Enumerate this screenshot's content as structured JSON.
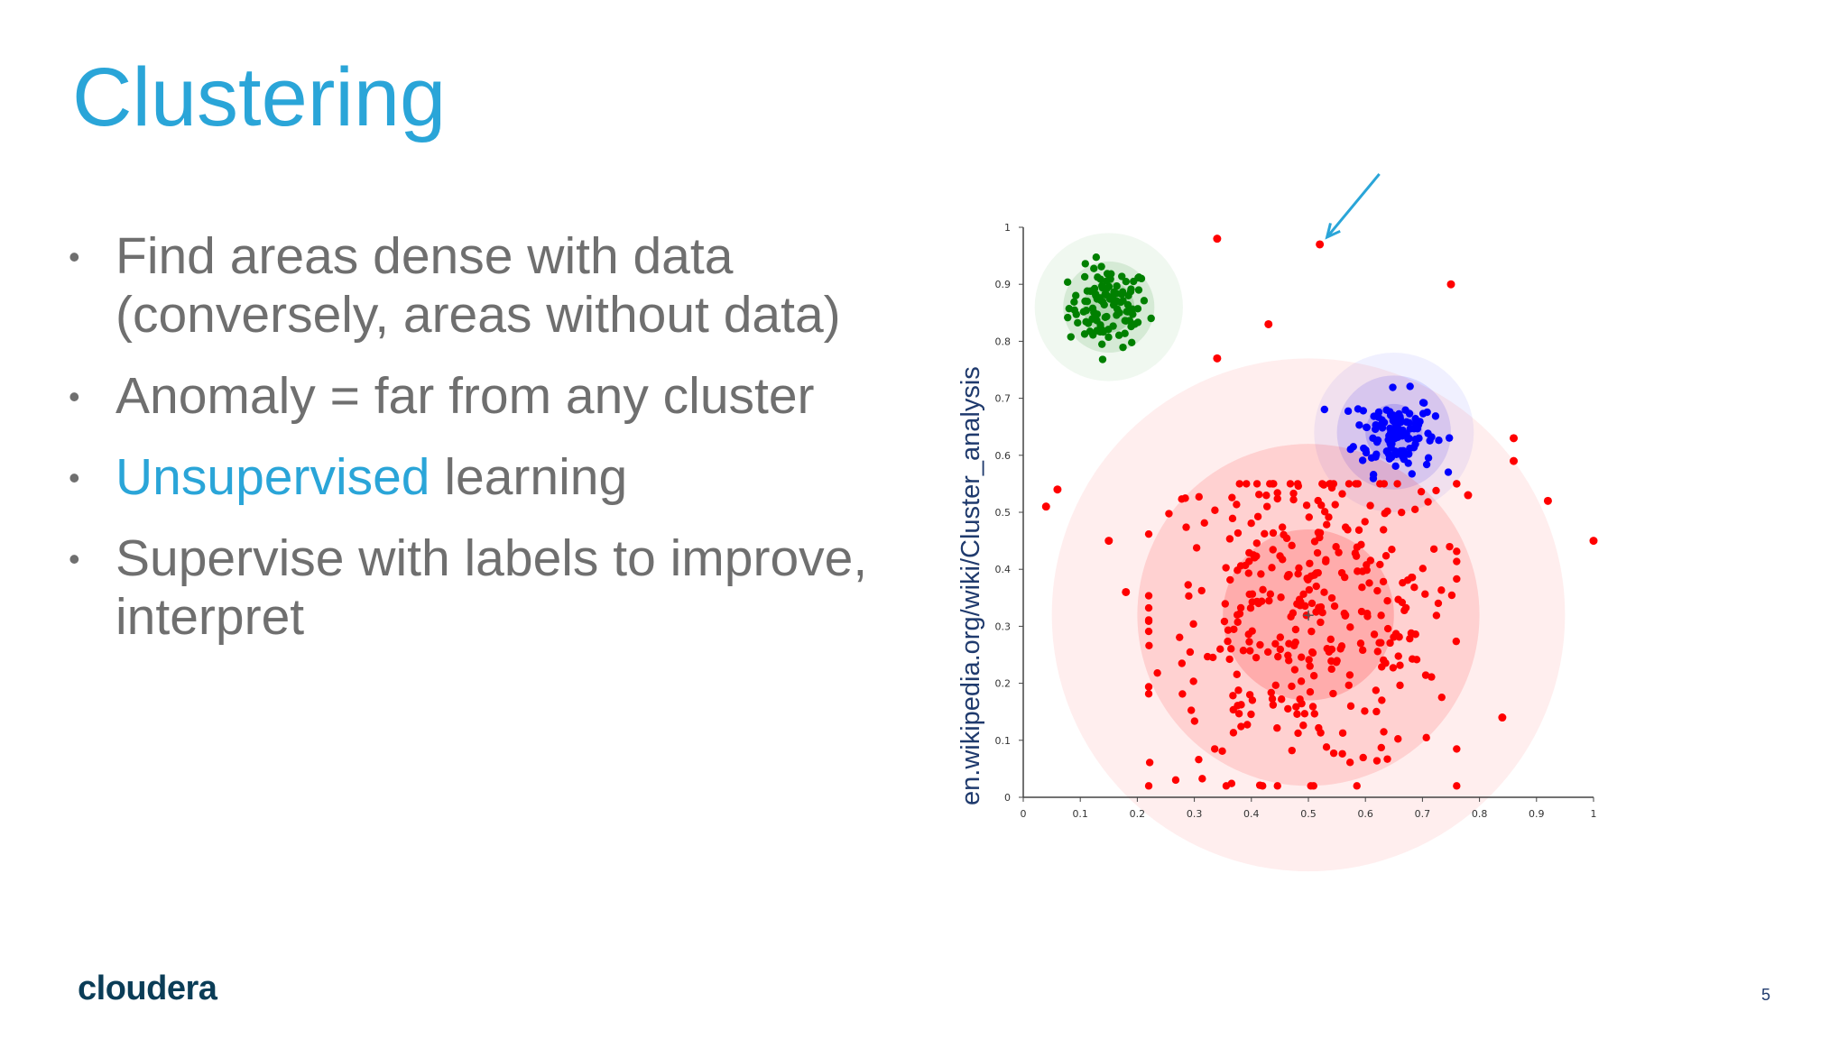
{
  "slide": {
    "title": "Clustering",
    "bullets": [
      {
        "pre": "",
        "accent": "",
        "text": "Find areas dense with data (conversely, areas without data)"
      },
      {
        "pre": "",
        "accent": "",
        "text": "Anomaly = far from any cluster"
      },
      {
        "pre": "",
        "accent": "Unsupervised",
        "text": " learning"
      },
      {
        "pre": "",
        "accent": "",
        "text": "Supervise with labels to improve, interpret"
      }
    ],
    "source": "en.wikipedia.org/wiki/Cluster_analysis",
    "logo": "cloudera",
    "page_number": "5"
  },
  "colors": {
    "title": "#2aa5d8",
    "body_text": "#6f6f6f",
    "green": "#008000",
    "blue": "#0000ff",
    "red": "#ff0000",
    "arrow": "#2aa5d8"
  },
  "chart_data": {
    "type": "scatter",
    "title": "",
    "xlabel": "",
    "ylabel": "",
    "xlim": [
      0,
      1
    ],
    "ylim": [
      0,
      1
    ],
    "x_ticks": [
      "0",
      "0.1",
      "0.2",
      "0.3",
      "0.4",
      "0.5",
      "0.6",
      "0.7",
      "0.8",
      "0.9",
      "1"
    ],
    "y_ticks": [
      "0",
      "0.1",
      "0.2",
      "0.3",
      "0.4",
      "0.5",
      "0.6",
      "0.7",
      "0.8",
      "0.9",
      "1"
    ],
    "clusters": [
      {
        "color": "green",
        "center": [
          0.15,
          0.86
        ],
        "std": 0.035,
        "count": 110,
        "rings": [
          0.13,
          0.08,
          0.045
        ]
      },
      {
        "color": "blue",
        "center": [
          0.65,
          0.64
        ],
        "std": 0.035,
        "count": 120,
        "rings": [
          0.14,
          0.1,
          0.05
        ]
      },
      {
        "color": "red",
        "center": [
          0.5,
          0.32
        ],
        "std": 0.14,
        "count": 360,
        "rings": [
          0.45,
          0.3,
          0.15
        ]
      }
    ],
    "outliers": [
      [
        0.34,
        0.98
      ],
      [
        0.52,
        0.97
      ],
      [
        0.75,
        0.9
      ],
      [
        0.43,
        0.83
      ],
      [
        0.34,
        0.77
      ],
      [
        0.06,
        0.54
      ],
      [
        0.04,
        0.51
      ],
      [
        0.15,
        0.45
      ],
      [
        0.18,
        0.36
      ],
      [
        0.86,
        0.63
      ],
      [
        0.86,
        0.59
      ],
      [
        0.92,
        0.52
      ],
      [
        1.0,
        0.45
      ],
      [
        0.84,
        0.14
      ],
      [
        0.78,
        0.53
      ]
    ],
    "annotated_point": [
      0.52,
      0.97
    ]
  }
}
